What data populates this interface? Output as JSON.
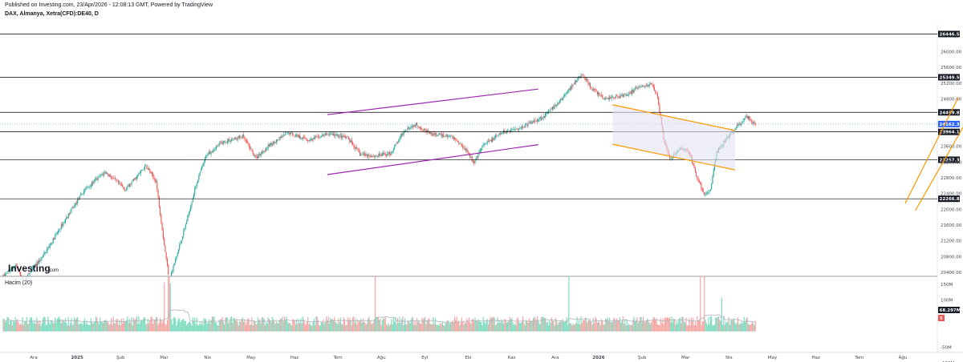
{
  "header": {
    "published": "Published on Investing.com, 23/Apr/2026 - 12:08:13 GMT, Powered by TradingView",
    "symbol": "DAX, Almanya, Xetra(CFD):DE40, D"
  },
  "watermark": "Investing",
  "watermark_suffix": ".com",
  "volume_label": "Hacim (20)",
  "colors": {
    "up": "#26a69a",
    "down": "#ef5350",
    "up_vol": "#7fdcc0",
    "down_vol": "#f4a8a6",
    "channel": "#9c27b0",
    "wedge": "#ff9800",
    "level": "#000000",
    "last": "#2962ff",
    "vol_ma": "#b0b3bd"
  },
  "chart_data": {
    "type": "candlestick",
    "price_axis": {
      "ticks": [
        "26000.00",
        "25600.00",
        "25200.00",
        "24800.00",
        "23600.00",
        "23200.00",
        "22800.00",
        "22400.00",
        "22000.00",
        "21600.00",
        "21200.00",
        "20800.00",
        "20400.00"
      ],
      "range": [
        20300,
        26700
      ]
    },
    "levels": [
      {
        "label": "26446.52",
        "value": 26446.52
      },
      {
        "label": "25349.59",
        "value": 25349.59
      },
      {
        "label": "24459.81",
        "value": 24459.81
      },
      {
        "label": "23964.14",
        "value": 23964.14
      },
      {
        "label": "23257.36",
        "value": 23257.36
      },
      {
        "label": "22266.88",
        "value": 22266.88
      }
    ],
    "last_price": {
      "label": "24162.37",
      "value": 24162.37
    },
    "volume_axis": {
      "ticks": [
        "150M",
        "100M",
        "-50M",
        "-100M"
      ],
      "range": [
        -110,
        175
      ]
    },
    "volume_ma_label": "68.297M",
    "volume_neg_label": "5",
    "x_labels": [
      "Ara",
      "2025",
      "Şub",
      "Mar",
      "Nis",
      "May",
      "Haz",
      "Tem",
      "Ağu",
      "Eyl",
      "Eki",
      "Kas",
      "Ara",
      "2026",
      "Şub",
      "Mar",
      "Nis",
      "May",
      "Haz",
      "Tem",
      "Ağu"
    ],
    "bold_labels": [
      "2025",
      "2026"
    ],
    "anchors": [
      [
        0,
        20300
      ],
      [
        12,
        20580
      ],
      [
        20,
        20180
      ],
      [
        40,
        20850
      ],
      [
        60,
        21700
      ],
      [
        80,
        22500
      ],
      [
        100,
        22950
      ],
      [
        120,
        22500
      ],
      [
        140,
        23100
      ],
      [
        150,
        22700
      ],
      [
        158,
        21100
      ],
      [
        163,
        20200
      ],
      [
        170,
        20800
      ],
      [
        180,
        21700
      ],
      [
        190,
        22700
      ],
      [
        200,
        23400
      ],
      [
        215,
        23700
      ],
      [
        235,
        23850
      ],
      [
        248,
        23300
      ],
      [
        260,
        23600
      ],
      [
        280,
        23950
      ],
      [
        300,
        23750
      ],
      [
        320,
        23920
      ],
      [
        338,
        23800
      ],
      [
        350,
        23400
      ],
      [
        365,
        23350
      ],
      [
        380,
        23420
      ],
      [
        395,
        24050
      ],
      [
        405,
        24150
      ],
      [
        420,
        23900
      ],
      [
        440,
        23850
      ],
      [
        455,
        23500
      ],
      [
        462,
        23150
      ],
      [
        470,
        23600
      ],
      [
        490,
        23950
      ],
      [
        510,
        24100
      ],
      [
        530,
        24350
      ],
      [
        545,
        24700
      ],
      [
        560,
        25200
      ],
      [
        568,
        25420
      ],
      [
        578,
        25050
      ],
      [
        590,
        24800
      ],
      [
        610,
        24900
      ],
      [
        625,
        25100
      ],
      [
        637,
        25180
      ],
      [
        642,
        24850
      ],
      [
        648,
        23800
      ],
      [
        655,
        23250
      ],
      [
        663,
        23550
      ],
      [
        673,
        23450
      ],
      [
        680,
        22850
      ],
      [
        688,
        22350
      ],
      [
        694,
        22500
      ],
      [
        700,
        23450
      ],
      [
        710,
        23800
      ],
      [
        720,
        24100
      ],
      [
        730,
        24350
      ],
      [
        738,
        24160
      ]
    ],
    "volume_spikes": [
      [
        158,
        5
      ],
      [
        162,
        6
      ],
      [
        163,
        10
      ],
      [
        164,
        7
      ],
      [
        365,
        6
      ],
      [
        555,
        5
      ],
      [
        684,
        5
      ],
      [
        688,
        6
      ],
      [
        705,
        5
      ]
    ],
    "annotations": [
      {
        "type": "channel",
        "color": "purple",
        "points": [
          [
            318,
            24400
          ],
          [
            525,
            25050
          ],
          [
            318,
            22880
          ],
          [
            525,
            23640
          ]
        ]
      },
      {
        "type": "falling-channel",
        "color": "orange",
        "points": [
          [
            598,
            24650
          ],
          [
            718,
            24000
          ],
          [
            598,
            23650
          ],
          [
            718,
            23000
          ]
        ]
      },
      {
        "type": "rising-wedge",
        "color": "orange",
        "points": [
          [
            885,
            22150
          ],
          [
            937,
            24830
          ],
          [
            895,
            21970
          ],
          [
            950,
            24450
          ]
        ]
      }
    ],
    "grid": false
  }
}
